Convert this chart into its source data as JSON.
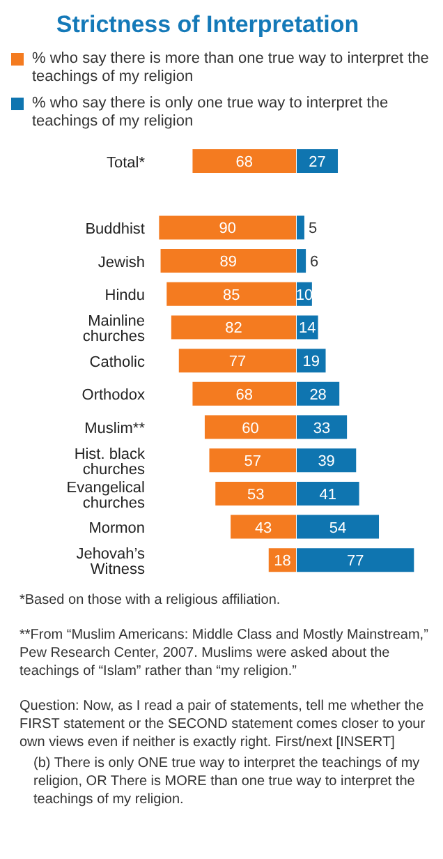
{
  "chart_data": [
    {
      "type": "bar",
      "orientation": "horizontal",
      "title": "Strictness of Interpretation",
      "categories": [
        "Total*",
        null,
        "Buddhist",
        "Jewish",
        "Hindu",
        "Mainline churches",
        "Catholic",
        "Orthodox",
        "Muslim**",
        "Hist. black churches",
        "Evangelical churches",
        "Mormon",
        "Jehovah’s Witness"
      ],
      "series": [
        {
          "name": "% who say there is more than one true way to interpret the teachings of my religion",
          "color": "#f47b20",
          "values": [
            68,
            null,
            90,
            89,
            85,
            82,
            77,
            68,
            60,
            57,
            53,
            43,
            18
          ]
        }
      ],
      "xlim": [
        92,
        0
      ],
      "data_labels": true,
      "legend": "top",
      "annotations": [
        "*Based on those with a religious affiliation.",
        "**From “Muslim Americans: Middle Class and Mostly Mainstream,” Pew Research Center, 2007. Muslims were asked about the teachings of “Islam” rather than “my religion.”",
        "Question: Now, as I read a pair of statements, tell me whether the FIRST statement or the SECOND statement comes closer to your own views even if neither is exactly right.  First/next [INSERT]",
        "(b) There is only ONE true way to interpret the teachings of my religion, OR There is MORE than one true way to interpret the teachings of my religion."
      ]
    },
    {
      "type": "bar",
      "orientation": "horizontal",
      "series": [
        {
          "name": "% who say there is only one true way to interpret the teachings of my religion",
          "color": "#0f75b0",
          "values": [
            27,
            null,
            5,
            6,
            10,
            14,
            19,
            28,
            33,
            39,
            41,
            54,
            77
          ]
        }
      ],
      "xlim": [
        0,
        80
      ],
      "data_labels": true,
      "legend": "top",
      "tick_labels": false
    }
  ]
}
